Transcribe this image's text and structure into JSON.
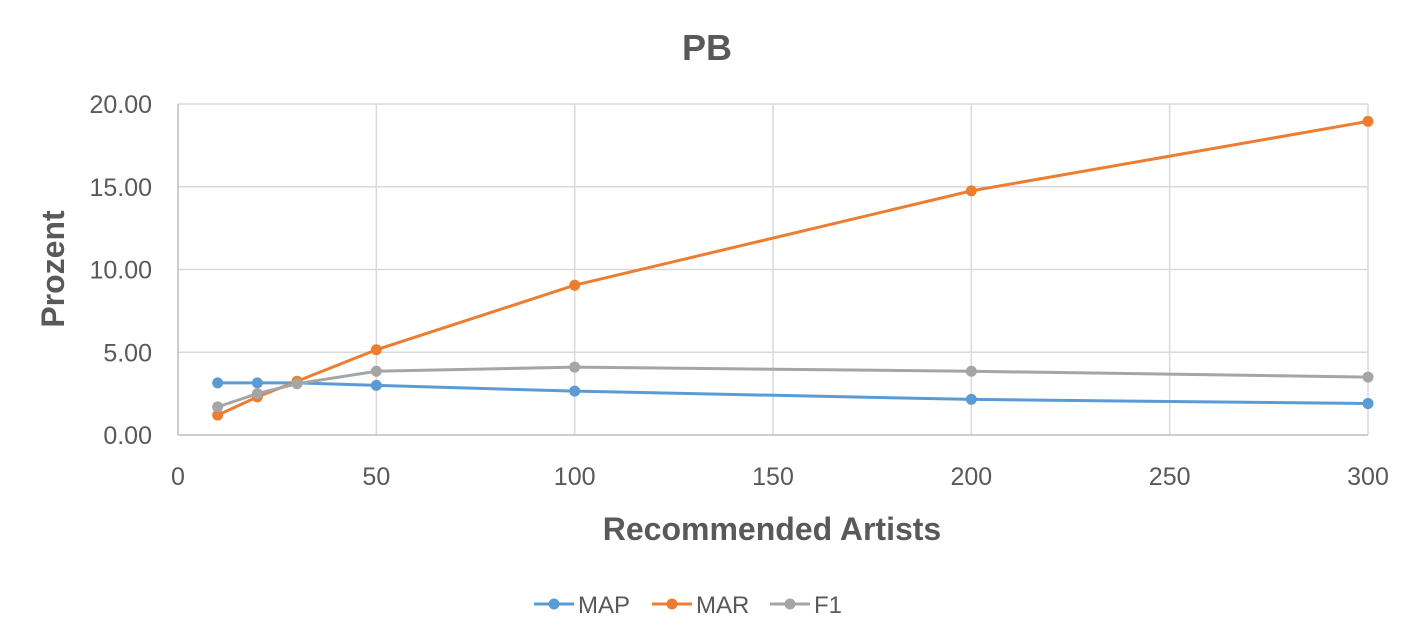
{
  "chart_data": {
    "type": "line",
    "title": "PB",
    "xlabel": "Recommended Artists",
    "ylabel": "Prozent",
    "xlim": [
      0,
      300
    ],
    "ylim": [
      0,
      20
    ],
    "xticks": [
      0,
      50,
      100,
      150,
      200,
      250,
      300
    ],
    "xtick_labels": [
      "0",
      "50",
      "100",
      "150",
      "200",
      "250",
      "300"
    ],
    "yticks": [
      0,
      5,
      10,
      15,
      20
    ],
    "ytick_labels": [
      "0.00",
      "5.00",
      "10.00",
      "15.00",
      "20.00"
    ],
    "grid": true,
    "legend": "bottom",
    "series": [
      {
        "name": "MAP",
        "color": "#5b9bd5",
        "x": [
          10,
          20,
          30,
          50,
          100,
          200,
          300
        ],
        "y": [
          3.15,
          3.15,
          3.15,
          3.0,
          2.65,
          2.15,
          1.9
        ]
      },
      {
        "name": "MAR",
        "color": "#ed7d31",
        "x": [
          10,
          20,
          30,
          50,
          100,
          200,
          300
        ],
        "y": [
          1.2,
          2.3,
          3.25,
          5.15,
          9.05,
          14.75,
          18.95
        ]
      },
      {
        "name": "F1",
        "color": "#a5a5a5",
        "x": [
          10,
          20,
          30,
          50,
          100,
          200,
          300
        ],
        "y": [
          1.7,
          2.5,
          3.1,
          3.85,
          4.1,
          3.85,
          3.5
        ]
      }
    ]
  }
}
